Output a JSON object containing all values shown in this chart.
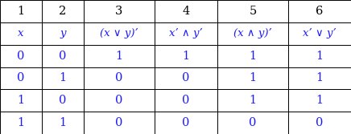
{
  "col_headers_row1": [
    "1",
    "2",
    "3",
    "4",
    "5",
    "6"
  ],
  "col_headers_row2": [
    "x",
    "y",
    "(x ∨ y)’",
    "x’ ∧ y’",
    "(x ∧ y)’",
    "x’ ∨ y’"
  ],
  "data_rows": [
    [
      "0",
      "0",
      "1",
      "1",
      "1",
      "1"
    ],
    [
      "0",
      "1",
      "0",
      "0",
      "1",
      "1"
    ],
    [
      "1",
      "0",
      "0",
      "0",
      "1",
      "1"
    ],
    [
      "1",
      "1",
      "0",
      "0",
      "0",
      "0"
    ]
  ],
  "col_widths_rel": [
    1.0,
    1.0,
    1.7,
    1.5,
    1.7,
    1.5
  ],
  "header1_color": "#000000",
  "header2_color": "#1a1aff",
  "data_color": "#1a1aff",
  "bg_color": "#ffffff",
  "border_color": "#000000",
  "row1_fontsize": 10.5,
  "row2_fontsize": 9.5,
  "data_fontsize": 10.5
}
